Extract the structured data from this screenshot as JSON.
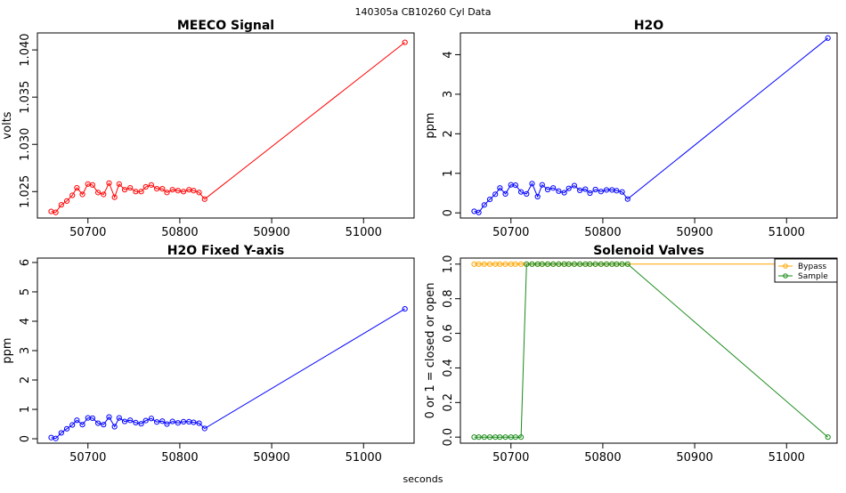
{
  "figure": {
    "suptitle": "140305a   CB10260   Cyl Data",
    "xlabel": "seconds"
  },
  "chart_data": [
    {
      "type": "line",
      "title": "MEECO Signal",
      "xlabel": "",
      "ylabel": "volts",
      "xlim": [
        50645,
        51055
      ],
      "ylim": [
        1.0222,
        1.0418
      ],
      "xticks": [
        50700,
        50800,
        50900,
        51000
      ],
      "yticks": [
        1.025,
        1.03,
        1.035,
        1.04
      ],
      "ytick_labels": [
        "1.025",
        "1.030",
        "1.035",
        "1.040"
      ],
      "series": [
        {
          "color": "#ff0000",
          "x": [
            50660,
            50665,
            50671,
            50677,
            50683,
            50688,
            50694,
            50700,
            50705,
            50711,
            50717,
            50723,
            50729,
            50734,
            50740,
            50746,
            50752,
            50758,
            50763,
            50769,
            50775,
            50781,
            50786,
            50792,
            50798,
            50804,
            50810,
            50815,
            50821,
            50827,
            51045
          ],
          "y": [
            1.0229,
            1.0228,
            1.0236,
            1.024,
            1.0246,
            1.0254,
            1.0247,
            1.0258,
            1.0257,
            1.0249,
            1.0247,
            1.0259,
            1.0244,
            1.0258,
            1.0252,
            1.0254,
            1.025,
            1.025,
            1.0255,
            1.0257,
            1.0253,
            1.0253,
            1.0249,
            1.0252,
            1.0251,
            1.025,
            1.0252,
            1.0251,
            1.0249,
            1.0242,
            1.0408
          ]
        }
      ]
    },
    {
      "type": "line",
      "title": "H2O",
      "xlabel": "",
      "ylabel": "ppm",
      "xlim": [
        50645,
        51055
      ],
      "ylim": [
        -0.13,
        4.55
      ],
      "xticks": [
        50700,
        50800,
        50900,
        51000
      ],
      "yticks": [
        0,
        1,
        2,
        3,
        4
      ],
      "ytick_labels": [
        "0",
        "1",
        "2",
        "3",
        "4"
      ],
      "series": [
        {
          "color": "#0000ff",
          "x": [
            50660,
            50665,
            50671,
            50677,
            50683,
            50688,
            50694,
            50700,
            50705,
            50711,
            50717,
            50723,
            50729,
            50734,
            50740,
            50746,
            50752,
            50758,
            50763,
            50769,
            50775,
            50781,
            50786,
            50792,
            50798,
            50804,
            50810,
            50815,
            50821,
            50827,
            51045
          ],
          "y": [
            0.04,
            0.01,
            0.2,
            0.34,
            0.47,
            0.63,
            0.48,
            0.71,
            0.7,
            0.53,
            0.48,
            0.74,
            0.41,
            0.71,
            0.59,
            0.63,
            0.55,
            0.51,
            0.62,
            0.69,
            0.57,
            0.6,
            0.5,
            0.59,
            0.54,
            0.58,
            0.58,
            0.56,
            0.53,
            0.35,
            4.42
          ]
        }
      ]
    },
    {
      "type": "line",
      "title": "H2O Fixed Y-axis",
      "xlabel": "",
      "ylabel": "ppm",
      "xlim": [
        50645,
        51055
      ],
      "ylim": [
        -0.15,
        6.15
      ],
      "xticks": [
        50700,
        50800,
        50900,
        51000
      ],
      "yticks": [
        0,
        1,
        2,
        3,
        4,
        5,
        6
      ],
      "ytick_labels": [
        "0",
        "1",
        "2",
        "3",
        "4",
        "5",
        "6"
      ],
      "series": [
        {
          "color": "#0000ff",
          "x": [
            50660,
            50665,
            50671,
            50677,
            50683,
            50688,
            50694,
            50700,
            50705,
            50711,
            50717,
            50723,
            50729,
            50734,
            50740,
            50746,
            50752,
            50758,
            50763,
            50769,
            50775,
            50781,
            50786,
            50792,
            50798,
            50804,
            50810,
            50815,
            50821,
            50827,
            51045
          ],
          "y": [
            0.04,
            0.01,
            0.2,
            0.34,
            0.47,
            0.63,
            0.48,
            0.71,
            0.7,
            0.53,
            0.48,
            0.74,
            0.41,
            0.71,
            0.59,
            0.63,
            0.55,
            0.51,
            0.62,
            0.69,
            0.57,
            0.6,
            0.5,
            0.59,
            0.54,
            0.58,
            0.58,
            0.56,
            0.53,
            0.35,
            4.42
          ]
        }
      ]
    },
    {
      "type": "line",
      "title": "Solenoid Valves",
      "xlabel": "",
      "ylabel": "0 or 1 = closed or open",
      "xlim": [
        50645,
        51055
      ],
      "ylim": [
        -0.035,
        1.035
      ],
      "xticks": [
        50700,
        50800,
        50900,
        51000
      ],
      "yticks": [
        0,
        0.2,
        0.4,
        0.6,
        0.8,
        1.0
      ],
      "ytick_labels": [
        "0.0",
        "0.2",
        "0.4",
        "0.6",
        "0.8",
        "1.0"
      ],
      "legend": {
        "position": "top-right"
      },
      "series": [
        {
          "name": "Bypass",
          "color": "#ffa500",
          "x": [
            50660,
            50665,
            50671,
            50677,
            50683,
            50688,
            50694,
            50700,
            50705,
            50711,
            50717,
            50723,
            50729,
            50734,
            50740,
            50746,
            50752,
            50758,
            50763,
            50769,
            50775,
            50781,
            50786,
            50792,
            50798,
            50804,
            50810,
            50815,
            50821,
            50827,
            51045
          ],
          "y": [
            1,
            1,
            1,
            1,
            1,
            1,
            1,
            1,
            1,
            1,
            1,
            1,
            1,
            1,
            1,
            1,
            1,
            1,
            1,
            1,
            1,
            1,
            1,
            1,
            1,
            1,
            1,
            1,
            1,
            1,
            1
          ]
        },
        {
          "name": "Sample",
          "color": "#1a8a1a",
          "x": [
            50660,
            50665,
            50671,
            50677,
            50683,
            50688,
            50694,
            50700,
            50705,
            50711,
            50717,
            50723,
            50729,
            50734,
            50740,
            50746,
            50752,
            50758,
            50763,
            50769,
            50775,
            50781,
            50786,
            50792,
            50798,
            50804,
            50810,
            50815,
            50821,
            50827,
            51045
          ],
          "y": [
            0,
            0,
            0,
            0,
            0,
            0,
            0,
            0,
            0,
            0,
            1,
            1,
            1,
            1,
            1,
            1,
            1,
            1,
            1,
            1,
            1,
            1,
            1,
            1,
            1,
            1,
            1,
            1,
            1,
            1,
            0
          ]
        }
      ]
    }
  ]
}
